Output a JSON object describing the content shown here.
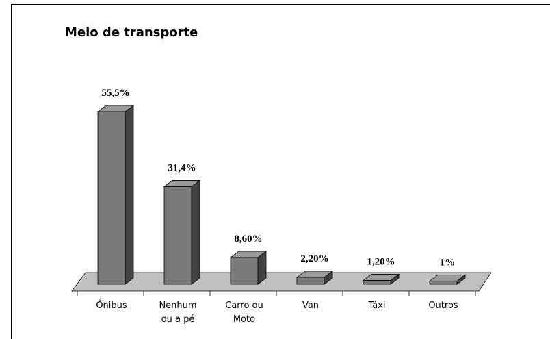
{
  "chart_data": {
    "type": "bar3d",
    "title": "Meio de transporte",
    "categories": [
      "Ônibus",
      "Nenhum ou a pé",
      "Carro ou Moto",
      "Van",
      "Táxi",
      "Outros"
    ],
    "values": [
      55.5,
      31.4,
      8.6,
      2.2,
      1.2,
      1
    ],
    "value_labels": [
      "55,5%",
      "31,4%",
      "8,60%",
      "2,20%",
      "1,20%",
      "1%"
    ],
    "color": "#7a7a7a"
  }
}
